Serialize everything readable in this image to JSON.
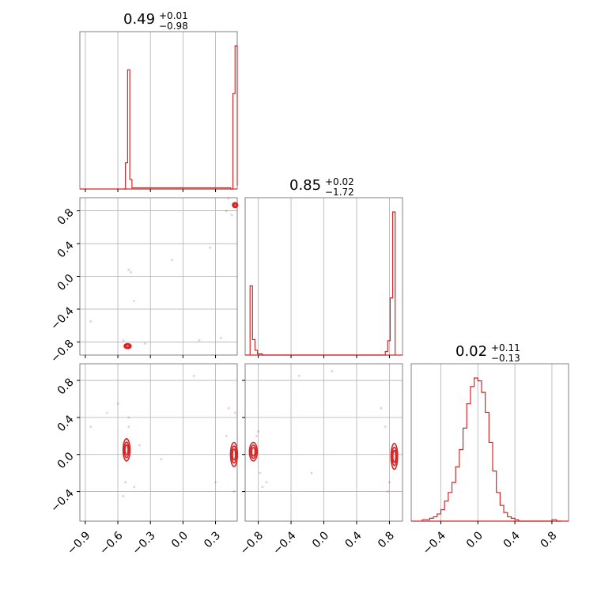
{
  "accent_color": "#d62728",
  "chart_data": {
    "type": "corner",
    "grid": true,
    "parameters": [
      {
        "title_value": "0.49",
        "title_plus": "+0.01",
        "title_minus": "−0.98",
        "range": [
          -0.95,
          0.5
        ]
      },
      {
        "title_value": "0.85",
        "title_plus": "+0.02",
        "title_minus": "−1.72",
        "range": [
          -0.96,
          0.96
        ]
      },
      {
        "title_value": "0.02",
        "title_plus": "+0.11",
        "title_minus": "−0.13",
        "range": [
          -0.72,
          0.98
        ]
      }
    ],
    "ticks": {
      "x0": [
        "−0.9",
        "−0.6",
        "−0.3",
        "0.0",
        "0.3"
      ],
      "x1": [
        "−0.8",
        "−0.4",
        "0.0",
        "0.4",
        "0.8"
      ],
      "x2": [
        "−0.4",
        "0.0",
        "0.4",
        "0.8"
      ],
      "y1": [
        "−0.8",
        "−0.4",
        "0.0",
        "0.4",
        "0.8"
      ],
      "y2": [
        "−0.4",
        "0.0",
        "0.4",
        "0.8"
      ]
    },
    "tick_values": {
      "x0": [
        -0.9,
        -0.6,
        -0.3,
        0.0,
        0.3
      ],
      "x1": [
        -0.8,
        -0.4,
        0.0,
        0.4,
        0.8
      ],
      "x2": [
        -0.4,
        0.0,
        0.4,
        0.8
      ],
      "y1": [
        -0.8,
        -0.4,
        0.0,
        0.4,
        0.8
      ],
      "y2": [
        -0.4,
        0.0,
        0.4,
        0.8
      ]
    },
    "histograms": [
      {
        "parameter": 0,
        "bin_edges": [
          -0.55,
          -0.53,
          -0.51,
          -0.49,
          -0.47,
          0.44,
          0.46,
          0.48,
          0.5
        ],
        "counts": [
          0.0,
          0.22,
          1.0,
          0.08,
          0.01,
          0.0,
          0.8,
          1.2,
          0.03
        ]
      },
      {
        "parameter": 1,
        "bin_edges": [
          -0.9,
          -0.87,
          -0.84,
          -0.81,
          -0.78,
          -0.75,
          0.75,
          0.78,
          0.81,
          0.84,
          0.87
        ],
        "counts": [
          0.58,
          0.13,
          0.04,
          0.01,
          0.01,
          0.0,
          0.03,
          0.12,
          0.48,
          1.2,
          0.0
        ]
      },
      {
        "parameter": 2,
        "bin_edges": [
          -0.6,
          -0.52,
          -0.48,
          -0.44,
          -0.4,
          -0.36,
          -0.32,
          -0.28,
          -0.24,
          -0.2,
          -0.16,
          -0.12,
          -0.08,
          -0.04,
          0.0,
          0.04,
          0.08,
          0.12,
          0.16,
          0.2,
          0.24,
          0.28,
          0.32,
          0.36,
          0.4,
          0.44,
          0.5,
          0.8,
          0.85,
          0.9
        ],
        "counts": [
          0.01,
          0.02,
          0.03,
          0.05,
          0.08,
          0.14,
          0.2,
          0.27,
          0.38,
          0.5,
          0.65,
          0.82,
          0.94,
          1.0,
          0.98,
          0.9,
          0.76,
          0.55,
          0.35,
          0.2,
          0.11,
          0.06,
          0.03,
          0.02,
          0.01,
          0.0,
          0.0,
          0.01,
          0.0
        ]
      }
    ],
    "contour_panels": [
      {
        "x_param": 0,
        "y_param": 1,
        "blobs": [
          {
            "cx": -0.51,
            "cy": -0.85,
            "rx": 0.02,
            "ry": 0.03
          },
          {
            "cx": 0.48,
            "cy": 0.87,
            "rx": 0.015,
            "ry": 0.03
          }
        ]
      },
      {
        "x_param": 0,
        "y_param": 2,
        "blobs": [
          {
            "cx": -0.52,
            "cy": 0.05,
            "rx": 0.02,
            "ry": 0.12
          },
          {
            "cx": 0.47,
            "cy": 0.0,
            "rx": 0.02,
            "ry": 0.13
          }
        ]
      },
      {
        "x_param": 1,
        "y_param": 2,
        "blobs": [
          {
            "cx": -0.86,
            "cy": 0.03,
            "rx": 0.03,
            "ry": 0.1
          },
          {
            "cx": 0.86,
            "cy": -0.02,
            "rx": 0.025,
            "ry": 0.14
          }
        ]
      }
    ],
    "scatter": [
      {
        "panel": 0,
        "points": [
          [
            -0.85,
            -0.55
          ],
          [
            -0.5,
            0.08
          ],
          [
            -0.48,
            0.05
          ],
          [
            -0.45,
            -0.3
          ],
          [
            -0.1,
            0.2
          ],
          [
            0.25,
            0.35
          ],
          [
            0.4,
            0.8
          ],
          [
            0.45,
            0.75
          ],
          [
            0.42,
            0.95
          ],
          [
            -0.35,
            -0.82
          ],
          [
            0.15,
            -0.78
          ],
          [
            0.35,
            -0.75
          ],
          [
            -0.55,
            -0.78
          ]
        ]
      },
      {
        "panel": 1,
        "points": [
          [
            -0.85,
            0.3
          ],
          [
            -0.7,
            0.45
          ],
          [
            -0.6,
            0.55
          ],
          [
            -0.5,
            0.3
          ],
          [
            -0.45,
            -0.35
          ],
          [
            -0.55,
            -0.45
          ],
          [
            -0.4,
            0.1
          ],
          [
            -0.2,
            -0.05
          ],
          [
            0.1,
            0.85
          ],
          [
            0.3,
            -0.3
          ],
          [
            0.4,
            0.2
          ],
          [
            0.42,
            0.5
          ],
          [
            0.48,
            0.45
          ],
          [
            0.47,
            -0.4
          ],
          [
            -0.5,
            0.4
          ],
          [
            -0.53,
            -0.3
          ]
        ]
      },
      {
        "panel": 2,
        "points": [
          [
            -0.82,
            0.2
          ],
          [
            -0.78,
            -0.2
          ],
          [
            -0.75,
            -0.35
          ],
          [
            -0.8,
            0.25
          ],
          [
            -0.7,
            -0.3
          ],
          [
            -0.3,
            0.85
          ],
          [
            0.1,
            0.9
          ],
          [
            0.7,
            0.5
          ],
          [
            0.75,
            0.3
          ],
          [
            0.8,
            -0.3
          ],
          [
            0.78,
            -0.4
          ],
          [
            -0.15,
            -0.2
          ]
        ]
      }
    ]
  }
}
